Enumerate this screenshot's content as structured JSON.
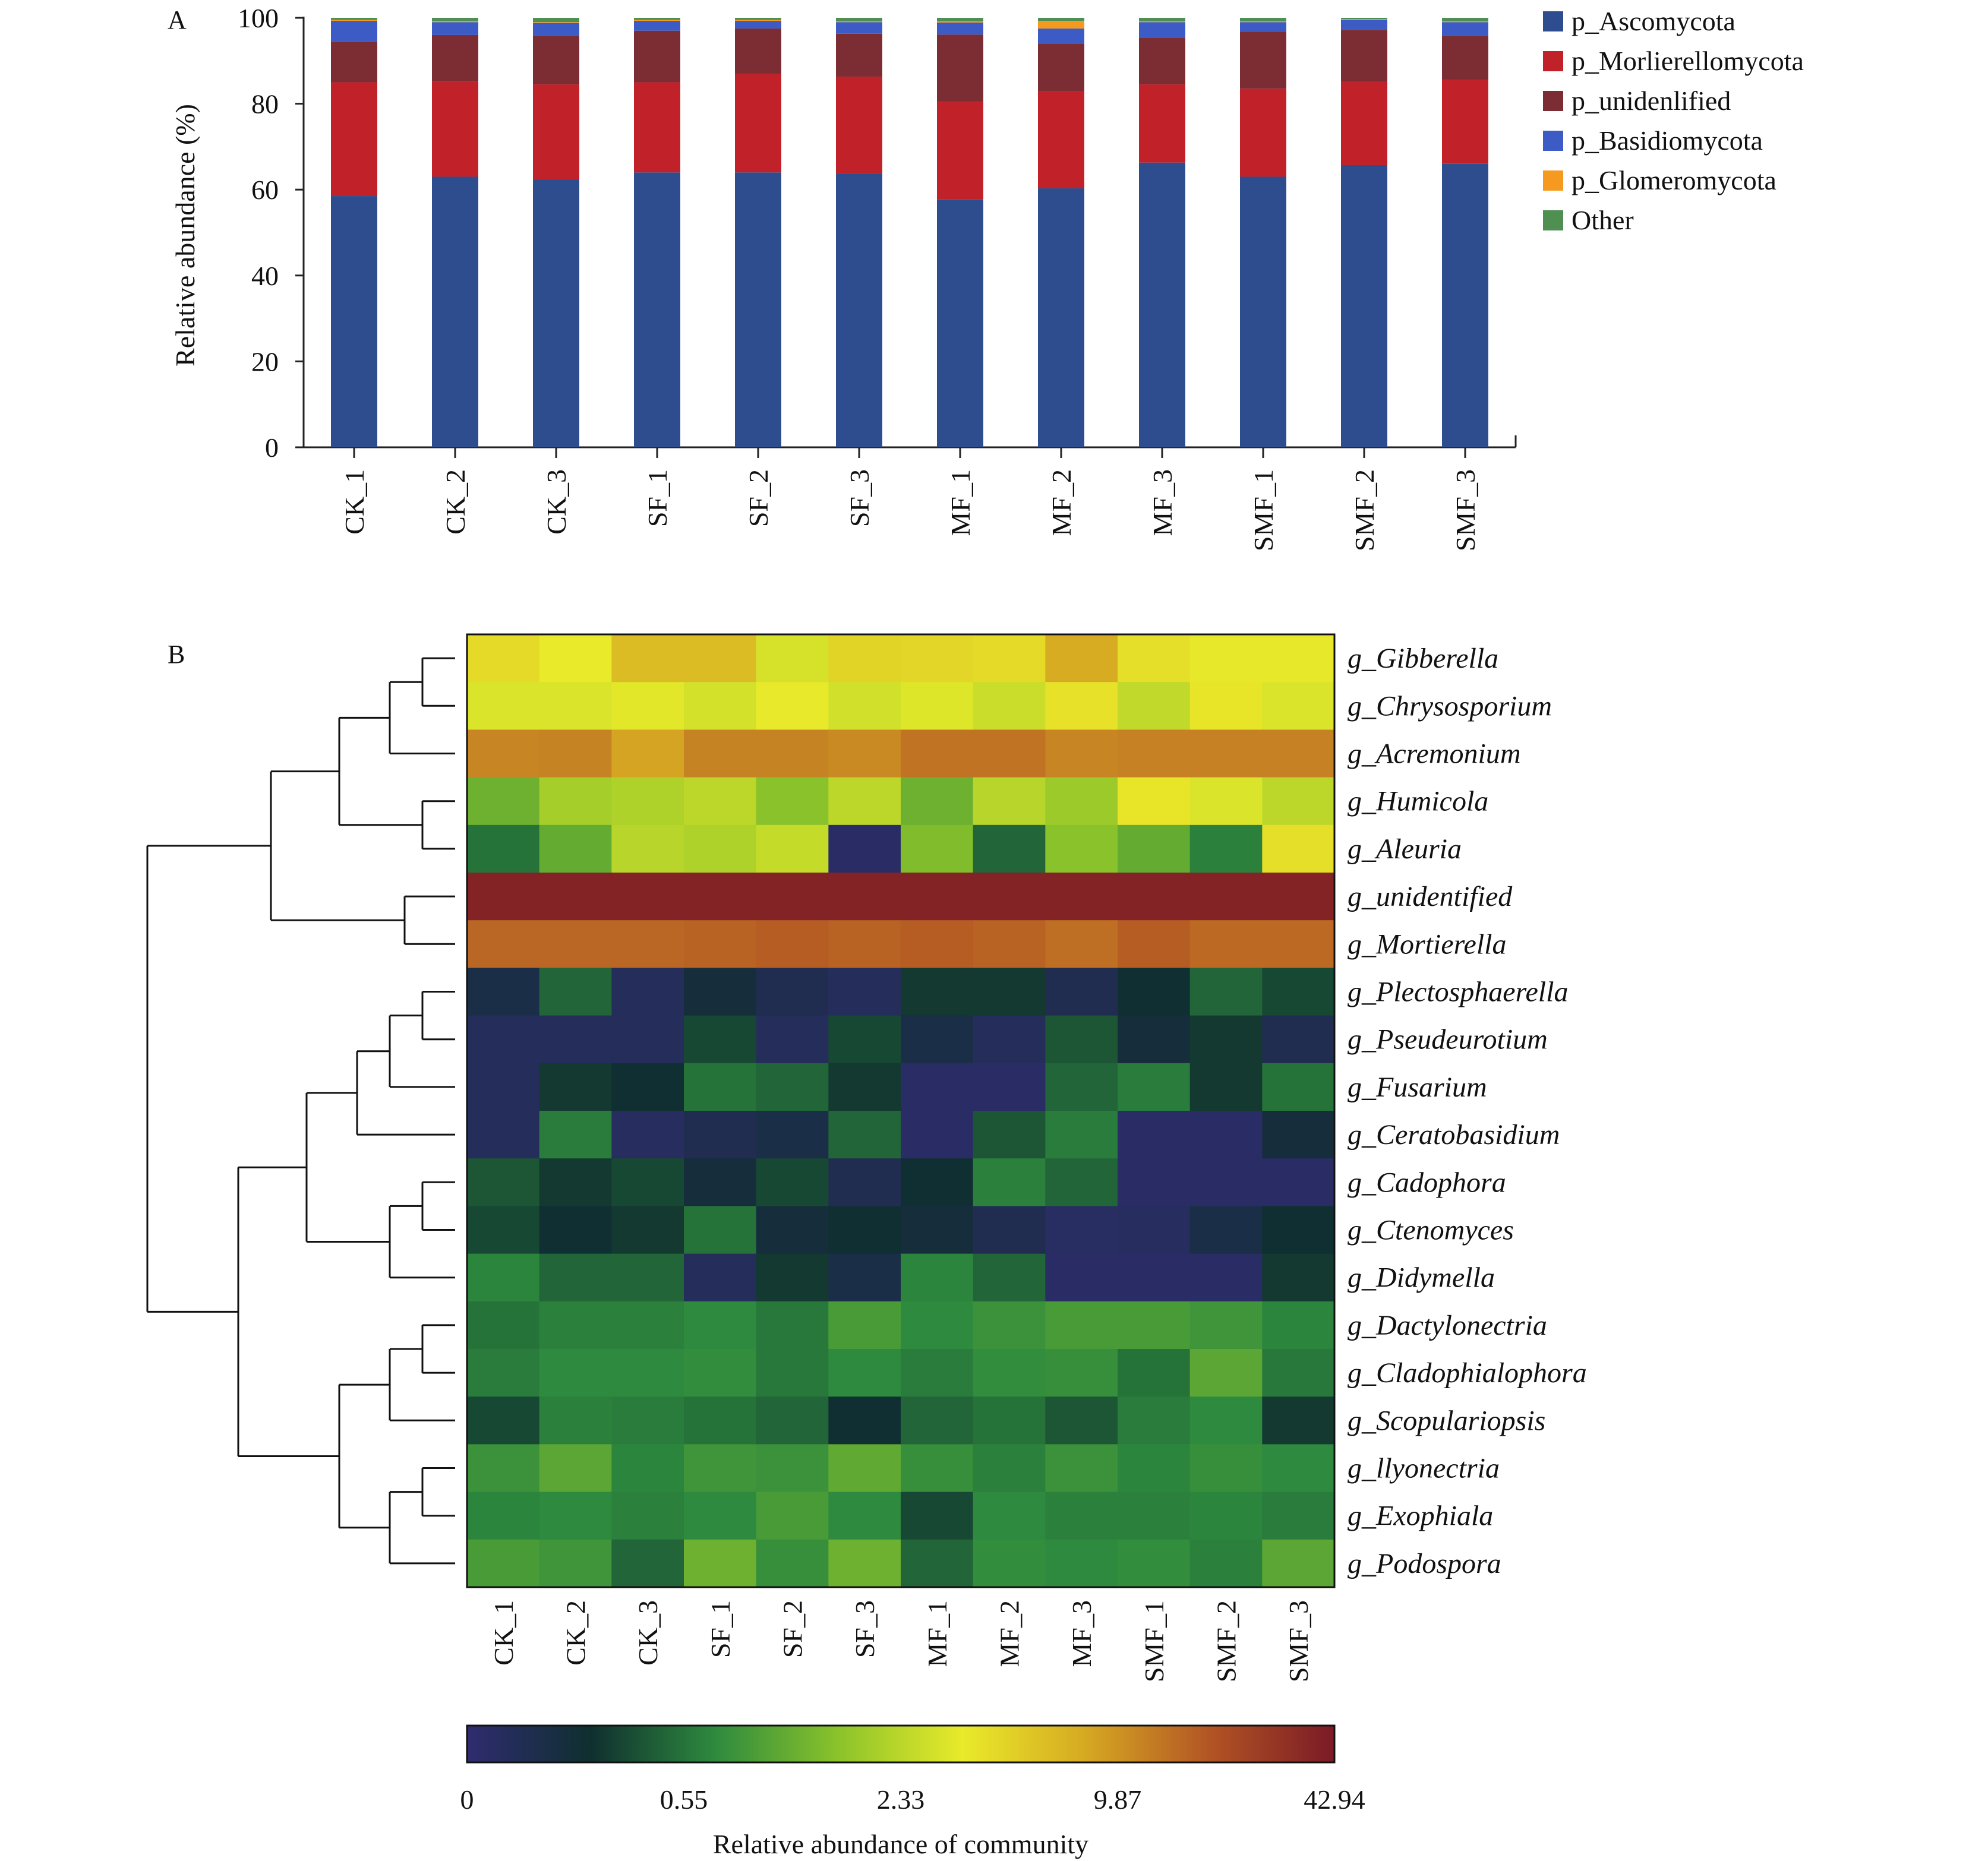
{
  "panel_a": {
    "label": "A",
    "chart_data": {
      "type": "bar",
      "stacked": true,
      "ylabel": "Relative abundance (%)",
      "ylim": [
        0,
        100
      ],
      "yticks": [
        0,
        20,
        40,
        60,
        80,
        100
      ],
      "categories": [
        "CK_1",
        "CK_2",
        "CK_3",
        "SF_1",
        "SF_2",
        "SF_3",
        "MF_1",
        "MF_2",
        "MF_3",
        "SMF_1",
        "SMF_2",
        "SMF_3"
      ],
      "series": [
        {
          "name": "p_Ascomycota",
          "color": "#2e4d8e",
          "values": [
            58.5,
            63,
            62.5,
            64,
            64,
            63.8,
            57.7,
            60.3,
            66.3,
            63,
            65.7,
            66
          ]
        },
        {
          "name": "p_Morlierellomycota",
          "color": "#c1222a",
          "values": [
            26.5,
            22.3,
            22,
            21,
            23,
            22.5,
            22.7,
            22.5,
            18.2,
            20.5,
            19.5,
            19.5
          ]
        },
        {
          "name": "p_unidenlified",
          "color": "#7b2d33",
          "values": [
            9.5,
            10.7,
            11.3,
            12,
            10.5,
            10,
            15.7,
            11.2,
            10.8,
            13.3,
            12,
            10.3
          ]
        },
        {
          "name": "p_Basidiomycota",
          "color": "#3d5bc4",
          "values": [
            4.8,
            3,
            3,
            2.3,
            1.8,
            2.7,
            2.8,
            3.5,
            3.7,
            2.2,
            2.3,
            3.2
          ]
        },
        {
          "name": "p_Glomeromycota",
          "color": "#f59a1f",
          "values": [
            0.2,
            0.3,
            0.2,
            0.2,
            0.2,
            0.2,
            0.3,
            1.8,
            0.2,
            0.2,
            0.2,
            0.2
          ]
        },
        {
          "name": "Other",
          "color": "#4f8f52",
          "values": [
            0.5,
            0.7,
            1,
            0.5,
            0.5,
            0.8,
            0.8,
            0.7,
            0.8,
            0.8,
            0.3,
            0.8
          ]
        }
      ],
      "legend": "right"
    }
  },
  "panel_b": {
    "label": "B",
    "chart_data": {
      "type": "heatmap",
      "x": [
        "CK_1",
        "CK_2",
        "CK_3",
        "SF_1",
        "SF_2",
        "SF_3",
        "MF_1",
        "MF_2",
        "MF_3",
        "SMF_1",
        "SMF_2",
        "SMF_3"
      ],
      "rows": [
        "g_Gibberella",
        "g_Chrysosporium",
        "g_Acremonium",
        "g_Humicola",
        "g_Aleuria",
        "g_unidentified",
        "g_Mortierella",
        "g_Plectosphaerella",
        "g_Pseudeurotium",
        "g_Fusarium",
        "g_Ceratobasidium",
        "g_Cadophora",
        "g_Ctenomyces",
        "g_Didymella",
        "g_Dactylonectria",
        "g_Cladophialophora",
        "g_Scopulariopsis",
        "g_llyonectria",
        "g_Exophiala",
        "g_Podospora"
      ],
      "values": [
        [
          5.5,
          4.5,
          7.5,
          7.5,
          3.6,
          6,
          5.8,
          5.5,
          8.5,
          5.2,
          4.6,
          4.6
        ],
        [
          3.8,
          3.8,
          4.2,
          3.5,
          4.4,
          3.4,
          4,
          3,
          5,
          2.6,
          4.8,
          3.8
        ],
        [
          13,
          13.5,
          9,
          13.5,
          13.5,
          12,
          17,
          17,
          13,
          14,
          14,
          14
        ],
        [
          1.5,
          2.1,
          2.2,
          2.4,
          1.8,
          2.4,
          1.5,
          2.3,
          2,
          4.8,
          3.8,
          2.4
        ],
        [
          0.55,
          1.4,
          2.3,
          2.2,
          2.8,
          0.05,
          1.7,
          0.5,
          1.8,
          1.4,
          0.7,
          5.2
        ],
        [
          40,
          40,
          40,
          40,
          40,
          40,
          40,
          40,
          40,
          40,
          40,
          40
        ],
        [
          20,
          20,
          20,
          21,
          22,
          21,
          22,
          21,
          18,
          22,
          19,
          19
        ],
        [
          0.2,
          0.5,
          0.1,
          0.25,
          0.15,
          0.1,
          0.35,
          0.35,
          0.15,
          0.3,
          0.5,
          0.4
        ],
        [
          0.1,
          0.1,
          0.1,
          0.4,
          0.1,
          0.4,
          0.2,
          0.1,
          0.45,
          0.25,
          0.35,
          0.15
        ],
        [
          0.1,
          0.35,
          0.3,
          0.55,
          0.5,
          0.35,
          0.05,
          0.05,
          0.5,
          0.65,
          0.35,
          0.55
        ],
        [
          0.1,
          0.65,
          0.08,
          0.15,
          0.2,
          0.5,
          0.05,
          0.45,
          0.65,
          0.05,
          0.05,
          0.25
        ],
        [
          0.45,
          0.35,
          0.4,
          0.25,
          0.4,
          0.15,
          0.3,
          0.7,
          0.5,
          0.05,
          0.05,
          0.05
        ],
        [
          0.4,
          0.3,
          0.35,
          0.55,
          0.25,
          0.3,
          0.25,
          0.15,
          0.07,
          0.08,
          0.2,
          0.3
        ],
        [
          0.75,
          0.5,
          0.5,
          0.1,
          0.35,
          0.2,
          0.75,
          0.5,
          0.05,
          0.05,
          0.05,
          0.35
        ],
        [
          0.55,
          0.7,
          0.7,
          0.8,
          0.6,
          1.1,
          0.8,
          0.95,
          1.1,
          1.1,
          1.0,
          0.75
        ],
        [
          0.65,
          0.8,
          0.8,
          0.85,
          0.6,
          0.8,
          0.65,
          0.85,
          0.9,
          0.55,
          1.3,
          0.6
        ],
        [
          0.4,
          0.7,
          0.65,
          0.55,
          0.5,
          0.3,
          0.5,
          0.55,
          0.45,
          0.65,
          0.8,
          0.35
        ],
        [
          0.95,
          1.3,
          0.75,
          1.0,
          0.95,
          1.35,
          0.9,
          0.7,
          0.95,
          0.75,
          0.9,
          0.8
        ],
        [
          0.75,
          0.8,
          0.7,
          0.8,
          1.1,
          0.8,
          0.4,
          0.8,
          0.7,
          0.7,
          0.75,
          0.65
        ],
        [
          1.1,
          1.0,
          0.5,
          1.5,
          0.9,
          1.5,
          0.5,
          0.85,
          0.8,
          0.85,
          0.7,
          1.3
        ]
      ],
      "colorbar": {
        "ticks": [
          "0",
          "0.55",
          "2.33",
          "9.87",
          "42.94"
        ],
        "label": "Relative abundance of community",
        "stops": [
          "#2f2c70",
          "#0f2f2f",
          "#2e8a3e",
          "#8bc32a",
          "#e9ea2a",
          "#d6a822",
          "#b25424",
          "#7a1a26"
        ]
      },
      "row_dendrogram": true
    }
  }
}
